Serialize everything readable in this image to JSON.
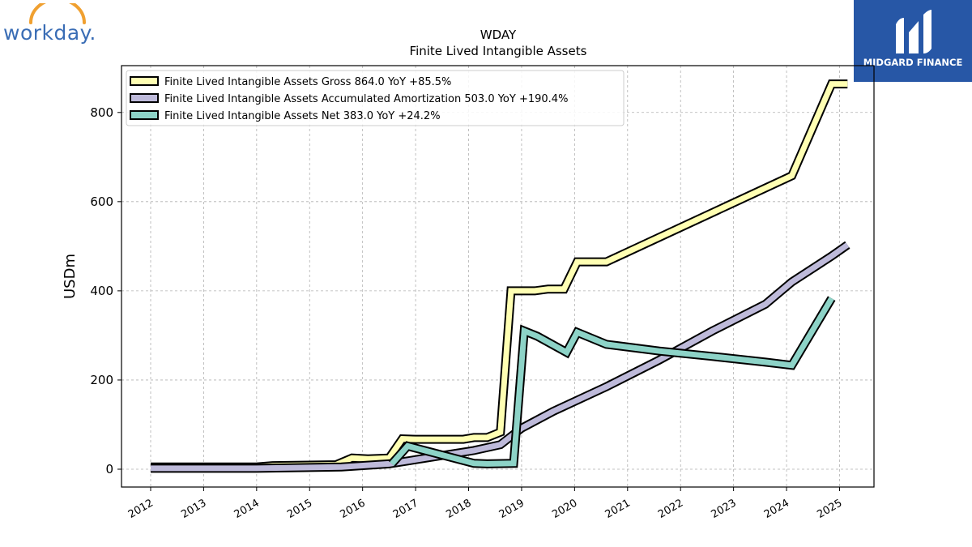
{
  "logos": {
    "left_text": "workday.",
    "left_color": "#3a6db5",
    "left_arc_color": "#f0a030",
    "right_text": "MIDGARD FINANCE",
    "right_bg": "#2757a6"
  },
  "chart_data": {
    "type": "line",
    "title": "WDAY",
    "subtitle": "Finite Lived Intangible Assets",
    "ylabel": "USDm",
    "xlabel": "",
    "xlim": [
      2011.45,
      2025.65
    ],
    "ylim": [
      -40,
      905
    ],
    "x_ticks": [
      "2012",
      "2013",
      "2014",
      "2015",
      "2016",
      "2017",
      "2018",
      "2019",
      "2020",
      "2021",
      "2022",
      "2023",
      "2024",
      "2025"
    ],
    "y_ticks": [
      0,
      200,
      400,
      600,
      800
    ],
    "grid": true,
    "legend_position": "top-left",
    "series": [
      {
        "name": "Finite Lived Intangible Assets Gross  864.0 YoY +85.5%",
        "color": "#ffffb3",
        "points": [
          [
            2012.0,
            5
          ],
          [
            2014.0,
            5
          ],
          [
            2014.3,
            8
          ],
          [
            2015.5,
            10
          ],
          [
            2015.8,
            25
          ],
          [
            2016.1,
            23
          ],
          [
            2016.5,
            25
          ],
          [
            2016.75,
            68
          ],
          [
            2017.0,
            67
          ],
          [
            2017.9,
            67
          ],
          [
            2018.1,
            71
          ],
          [
            2018.35,
            71
          ],
          [
            2018.6,
            83
          ],
          [
            2018.8,
            400
          ],
          [
            2019.25,
            400
          ],
          [
            2019.5,
            404
          ],
          [
            2019.8,
            404
          ],
          [
            2020.05,
            465
          ],
          [
            2020.6,
            465
          ],
          [
            2024.1,
            658
          ],
          [
            2024.85,
            864
          ],
          [
            2025.15,
            864
          ]
        ]
      },
      {
        "name": "Finite Lived Intangible Assets Accumulated Amortization  503.0 YoY +190.4%",
        "color": "#bebada",
        "points": [
          [
            2012.0,
            2
          ],
          [
            2014.0,
            2
          ],
          [
            2015.6,
            5
          ],
          [
            2016.5,
            12
          ],
          [
            2017.2,
            25
          ],
          [
            2018.1,
            42
          ],
          [
            2018.6,
            55
          ],
          [
            2019.0,
            92
          ],
          [
            2019.6,
            130
          ],
          [
            2020.6,
            185
          ],
          [
            2021.6,
            245
          ],
          [
            2022.6,
            310
          ],
          [
            2023.6,
            370
          ],
          [
            2024.1,
            420
          ],
          [
            2024.85,
            478
          ],
          [
            2025.15,
            503
          ]
        ]
      },
      {
        "name": "Finite Lived Intangible Assets Net  383.0 YoY +24.2%",
        "color": "#8dd3c7",
        "points": [
          [
            2016.55,
            12
          ],
          [
            2016.85,
            52
          ],
          [
            2017.3,
            38
          ],
          [
            2018.1,
            13
          ],
          [
            2018.35,
            12
          ],
          [
            2018.85,
            13
          ],
          [
            2019.05,
            310
          ],
          [
            2019.3,
            298
          ],
          [
            2019.85,
            262
          ],
          [
            2020.05,
            307
          ],
          [
            2020.6,
            280
          ],
          [
            2021.6,
            265
          ],
          [
            2022.6,
            253
          ],
          [
            2023.6,
            240
          ],
          [
            2024.1,
            233
          ],
          [
            2024.85,
            383
          ]
        ]
      }
    ]
  }
}
